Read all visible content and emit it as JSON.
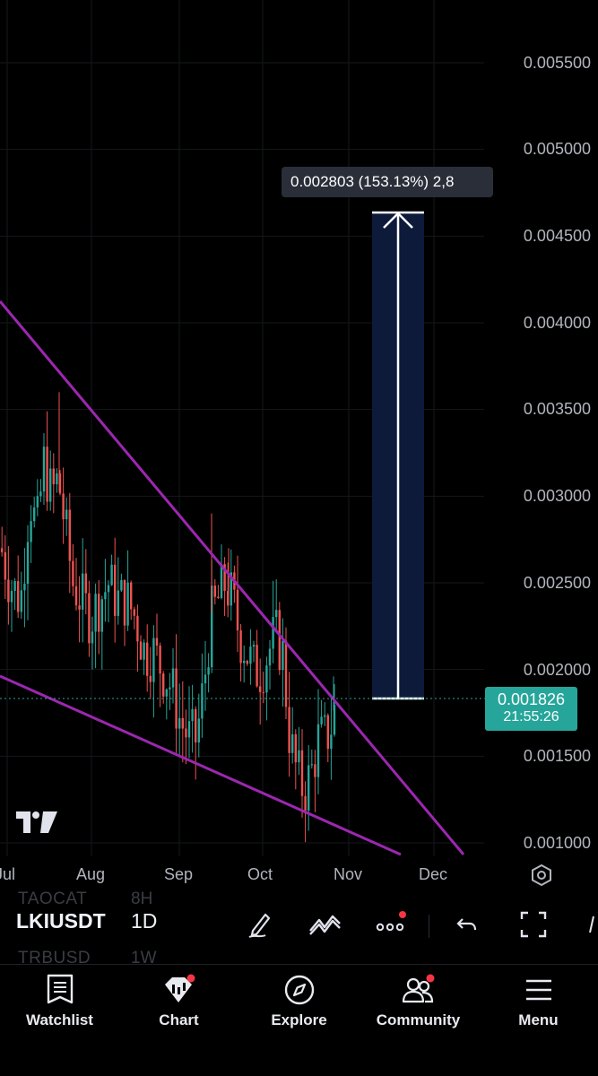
{
  "chart": {
    "price_axis": [
      "0.005500",
      "0.005000",
      "0.004500",
      "0.004000",
      "0.003500",
      "0.003000",
      "0.002500",
      "0.002000",
      "0.001500",
      "0.001000"
    ],
    "time_axis": [
      "Jul",
      "Aug",
      "Sep",
      "Oct",
      "Nov",
      "Dec"
    ],
    "measure_tooltip": "0.002803 (153.13%) 2,8",
    "last_price": "0.001826",
    "countdown": "21:55:26",
    "colors": {
      "up": "#26a69a",
      "down": "#ef5350",
      "trendline": "#9c27b0",
      "measure_fill": "#0d1a3a",
      "background": "#000000"
    }
  },
  "chart_data": {
    "type": "candlestick",
    "symbol": "LKIUSDT",
    "interval": "1D",
    "ylim": [
      0.00095,
      0.0058
    ],
    "x_ticks": [
      "Jul",
      "Aug",
      "Sep",
      "Oct",
      "Nov",
      "Dec"
    ],
    "close_trend": [
      [
        "Jul",
        0.0026
      ],
      [
        "mid-Jul",
        0.003
      ],
      [
        "Aug",
        0.0024
      ],
      [
        "mid-Aug",
        0.0023
      ],
      [
        "Sep",
        0.0016
      ],
      [
        "mid-Sep",
        0.0025
      ],
      [
        "Oct",
        0.0021
      ],
      [
        "mid-Oct",
        0.0013
      ],
      [
        "late-Oct",
        0.001826
      ]
    ],
    "last_price": 0.001826,
    "measure": {
      "from": 0.001826,
      "to": 0.004629,
      "change": "0.002803",
      "percent": "153.13%"
    },
    "annotations": [
      "falling wedge upper trendline",
      "falling wedge lower trendline",
      "price range measure"
    ]
  },
  "toolbar": {
    "symbol": "LKIUSDT",
    "interval": "1D",
    "ghost_above": {
      "symbol": "TAOCAT",
      "interval": "8H"
    },
    "ghost_below": {
      "symbol": "TRBUSD",
      "interval": "1W"
    }
  },
  "bottom_nav": [
    {
      "label": "Watchlist",
      "icon": "watchlist-icon"
    },
    {
      "label": "Chart",
      "icon": "chart-icon"
    },
    {
      "label": "Explore",
      "icon": "compass-icon"
    },
    {
      "label": "Community",
      "icon": "community-icon"
    },
    {
      "label": "Menu",
      "icon": "menu-icon"
    }
  ]
}
